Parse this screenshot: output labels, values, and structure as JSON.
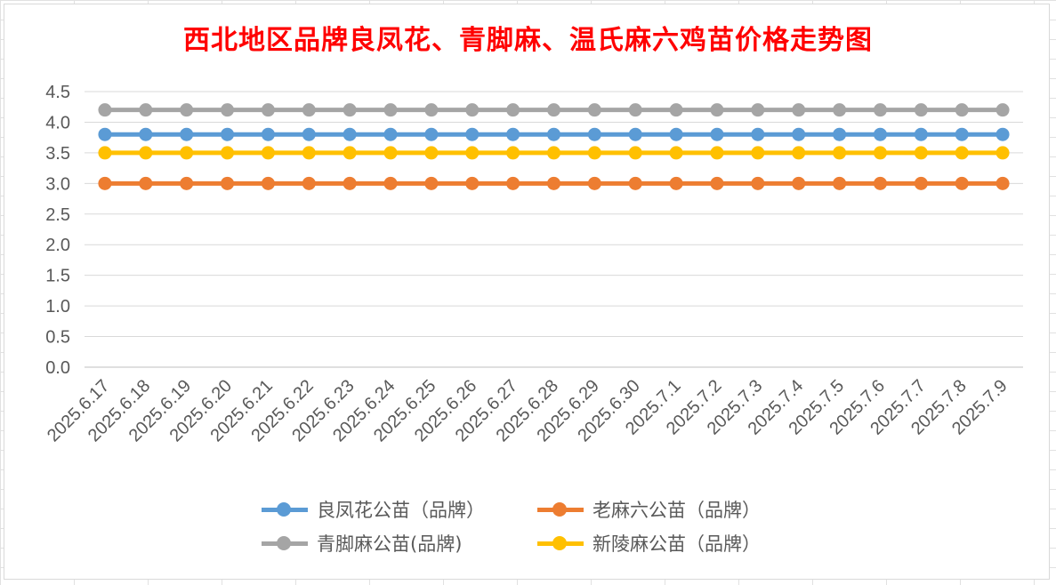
{
  "chart_data": {
    "type": "line",
    "title": "西北地区品牌良凤花、青脚麻、温氏麻六鸡苗价格走势图",
    "xlabel": "",
    "ylabel": "",
    "ylim": [
      0,
      4.5
    ],
    "yticks": [
      "0.0",
      "0.5",
      "1.0",
      "1.5",
      "2.0",
      "2.5",
      "3.0",
      "3.5",
      "4.0",
      "4.5"
    ],
    "grid": true,
    "legend_position": "bottom",
    "categories": [
      "2025.6.17",
      "2025.6.18",
      "2025.6.19",
      "2025.6.20",
      "2025.6.21",
      "2025.6.22",
      "2025.6.23",
      "2025.6.24",
      "2025.6.25",
      "2025.6.26",
      "2025.6.27",
      "2025.6.28",
      "2025.6.29",
      "2025.6.30",
      "2025.7.1",
      "2025.7.2",
      "2025.7.3",
      "2025.7.4",
      "2025.7.5",
      "2025.7.6",
      "2025.7.7",
      "2025.7.8",
      "2025.7.9"
    ],
    "series": [
      {
        "name": "良凤花公苗（品牌）",
        "color": "#5b9bd5",
        "values": [
          3.8,
          3.8,
          3.8,
          3.8,
          3.8,
          3.8,
          3.8,
          3.8,
          3.8,
          3.8,
          3.8,
          3.8,
          3.8,
          3.8,
          3.8,
          3.8,
          3.8,
          3.8,
          3.8,
          3.8,
          3.8,
          3.8,
          3.8
        ]
      },
      {
        "name": "老麻六公苗（品牌）",
        "color": "#ed7d31",
        "values": [
          3.0,
          3.0,
          3.0,
          3.0,
          3.0,
          3.0,
          3.0,
          3.0,
          3.0,
          3.0,
          3.0,
          3.0,
          3.0,
          3.0,
          3.0,
          3.0,
          3.0,
          3.0,
          3.0,
          3.0,
          3.0,
          3.0,
          3.0
        ]
      },
      {
        "name": "青脚麻公苗(品牌)",
        "color": "#a5a5a5",
        "values": [
          4.2,
          4.2,
          4.2,
          4.2,
          4.2,
          4.2,
          4.2,
          4.2,
          4.2,
          4.2,
          4.2,
          4.2,
          4.2,
          4.2,
          4.2,
          4.2,
          4.2,
          4.2,
          4.2,
          4.2,
          4.2,
          4.2,
          4.2
        ]
      },
      {
        "name": "新陵麻公苗（品牌）",
        "color": "#ffc000",
        "values": [
          3.5,
          3.5,
          3.5,
          3.5,
          3.5,
          3.5,
          3.5,
          3.5,
          3.5,
          3.5,
          3.5,
          3.5,
          3.5,
          3.5,
          3.5,
          3.5,
          3.5,
          3.5,
          3.5,
          3.5,
          3.5,
          3.5,
          3.5
        ]
      }
    ],
    "legend": [
      "良凤花公苗（品牌）",
      "老麻六公苗（品牌）",
      "青脚麻公苗(品牌)",
      "新陵麻公苗（品牌）"
    ]
  }
}
